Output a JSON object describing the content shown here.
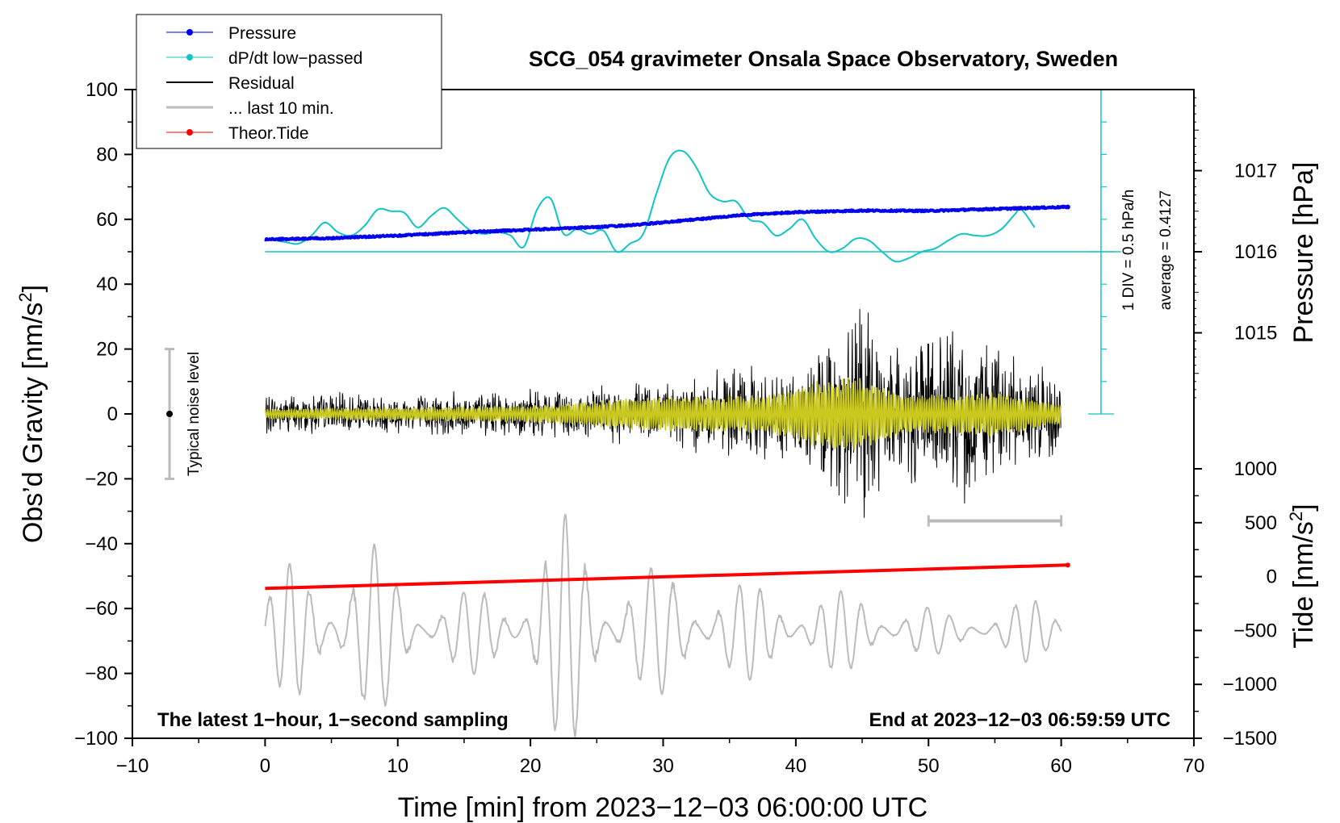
{
  "chart_data": {
    "type": "line",
    "title": "SCG_054 gravimeter Onsala Space Observatory, Sweden",
    "xlabel": "Time [min] from 2023−12−03 06:00:00 UTC",
    "ylabel": "Obs’d Gravity [nm/s²]",
    "ylabel_main": "Obs’d Gravity [nm/s",
    "ylabel_sup": "2",
    "ylabel_end": "]",
    "y2label_pressure": "Pressure [hPa]",
    "y2label_tide_main": "Tide [nm/s",
    "y2label_tide_sup": "2",
    "y2label_tide_end": "]",
    "xlim": [
      -10,
      70
    ],
    "ylim": [
      -100,
      100
    ],
    "xticks": [
      -10,
      0,
      10,
      20,
      30,
      40,
      50,
      60,
      70
    ],
    "xtick_labels": [
      "−10",
      "0",
      "10",
      "20",
      "30",
      "40",
      "50",
      "60",
      "70"
    ],
    "yticks": [
      100,
      80,
      60,
      40,
      20,
      0,
      -20,
      -40,
      -60,
      -80,
      -100
    ],
    "ytick_labels": [
      "100",
      "80",
      "60",
      "40",
      "20",
      "0",
      "−20",
      "−40",
      "−60",
      "−80",
      "−100"
    ],
    "pressure_axis": {
      "ticks": [
        1017,
        1016,
        1015
      ],
      "tick_labels": [
        "1017",
        "1016",
        "1015"
      ],
      "gravity_equiv_at_1016": 50,
      "gravity_per_hpa": 25
    },
    "tide_axis": {
      "ticks": [
        1000,
        500,
        0,
        -500,
        -1000,
        -1500
      ],
      "tick_labels": [
        "1000",
        "500",
        "0",
        "−500",
        "−1000",
        "−1500"
      ],
      "range": [
        -1500,
        1000
      ]
    },
    "legend": [
      {
        "label": "Pressure",
        "color": "#0000ee",
        "marker": true
      },
      {
        "label": "dP/dt low−passed",
        "color": "#11c4c4",
        "marker": true
      },
      {
        "label": "Residual",
        "color": "#000000",
        "marker": false
      },
      {
        "label": "... last 10 min.",
        "color": "#bbbbbb",
        "marker": false
      },
      {
        "label": "Theor.Tide",
        "color": "#ff0000",
        "marker": true
      }
    ],
    "annotations": {
      "bottom_left": "The latest 1−hour, 1−second sampling",
      "bottom_right": "End at 2023−12−03 06:59:59 UTC",
      "scale_div": "1 DIV = 0.5 hPa/h",
      "scale_avg": "average = 0.4127",
      "noise_label": "Typical noise level"
    },
    "noise_bar": {
      "x": -7.2,
      "center": 0,
      "low": -20,
      "high": 20
    },
    "last10_bar": {
      "x_start": 50,
      "x_end": 60,
      "y": -33
    },
    "dpdt_baseline_y": 50,
    "dpdt_scale_bar": {
      "x": 63,
      "y_bottom": 0,
      "y_top": 100
    },
    "series": [
      {
        "name": "Pressure",
        "color": "#0000ee",
        "x": [
          0,
          5,
          10,
          15,
          20,
          25,
          28,
          32,
          36,
          40,
          45,
          50,
          55,
          60.5
        ],
        "y": [
          53.8,
          54.2,
          55,
          56,
          56.8,
          57.6,
          58.3,
          59.8,
          61.3,
          62.2,
          62.7,
          62.6,
          63.2,
          63.8
        ]
      },
      {
        "name": "dP/dt low−passed",
        "color": "#11c4c4",
        "x": [
          0,
          1.5,
          2.5,
          3.5,
          4.5,
          5.5,
          6.5,
          7.5,
          8.5,
          9.5,
          10.5,
          11.5,
          12.5,
          13.5,
          14.5,
          15.5,
          16.5,
          17.5,
          18.5,
          19.5,
          20.5,
          21.5,
          22.5,
          23.5,
          24.5,
          25.5,
          26.5,
          27.5,
          28.5,
          29.5,
          30.5,
          31.5,
          32.5,
          33.5,
          34.5,
          35.5,
          36.5,
          37.5,
          38.5,
          39.5,
          40.5,
          41.5,
          42.5,
          43.5,
          44.5,
          45.5,
          46.5,
          47.5,
          48.5,
          49.5,
          50.5,
          51.5,
          52.5,
          53.5,
          54.5,
          55.5,
          56.5,
          57,
          58
        ],
        "y": [
          54,
          53,
          52.5,
          55,
          59,
          56,
          55,
          58,
          63,
          62.5,
          62,
          57.5,
          61,
          63.5,
          60,
          56.5,
          55.5,
          56,
          55,
          51.5,
          63,
          66.5,
          55.5,
          57,
          55.5,
          56.5,
          50,
          52.5,
          55.5,
          68,
          79,
          81,
          76,
          68,
          65.5,
          65.5,
          60,
          59,
          55,
          57,
          60,
          54,
          50,
          51,
          54,
          53.5,
          50,
          47,
          48,
          50,
          51,
          53.5,
          55.5,
          55,
          55,
          57,
          61.5,
          63,
          57.5
        ]
      },
      {
        "name": "Theor.Tide",
        "color": "#ff0000",
        "x": [
          0,
          60.5
        ],
        "y": [
          -53.8,
          -46.6
        ]
      }
    ],
    "residual": {
      "color": "#000000",
      "x_range": [
        0,
        60
      ],
      "envelope": [
        {
          "x": 0,
          "amp": 7
        },
        {
          "x": 10,
          "amp": 7
        },
        {
          "x": 20,
          "amp": 8
        },
        {
          "x": 27,
          "amp": 10
        },
        {
          "x": 35,
          "amp": 15
        },
        {
          "x": 40,
          "amp": 16
        },
        {
          "x": 43,
          "amp": 28
        },
        {
          "x": 45,
          "amp": 38
        },
        {
          "x": 48,
          "amp": 24
        },
        {
          "x": 51,
          "amp": 28
        },
        {
          "x": 54,
          "amp": 30
        },
        {
          "x": 57,
          "amp": 18
        },
        {
          "x": 60,
          "amp": 14
        }
      ]
    },
    "filtered_residual": {
      "color": "#c8c81e",
      "x_range": [
        0,
        60
      ],
      "envelope": [
        {
          "x": 0,
          "amp": 1.5
        },
        {
          "x": 20,
          "amp": 2.5
        },
        {
          "x": 28,
          "amp": 5
        },
        {
          "x": 38,
          "amp": 6
        },
        {
          "x": 43,
          "amp": 12
        },
        {
          "x": 45,
          "amp": 11
        },
        {
          "x": 48,
          "amp": 6
        },
        {
          "x": 52,
          "amp": 6
        },
        {
          "x": 55,
          "amp": 7
        },
        {
          "x": 60,
          "amp": 3
        }
      ]
    },
    "last10": {
      "name": "... last 10 min.",
      "color": "#bbbbbb",
      "x_range": [
        0,
        60
      ],
      "center": -67,
      "envelope": [
        {
          "x": 0,
          "amp": 12
        },
        {
          "x": 2,
          "amp": 22
        },
        {
          "x": 8,
          "amp": 28
        },
        {
          "x": 12,
          "amp": 12
        },
        {
          "x": 18,
          "amp": 14
        },
        {
          "x": 23,
          "amp": 38
        },
        {
          "x": 26,
          "amp": 20
        },
        {
          "x": 30,
          "amp": 20
        },
        {
          "x": 38,
          "amp": 14
        },
        {
          "x": 45,
          "amp": 12
        },
        {
          "x": 52,
          "amp": 6
        },
        {
          "x": 58,
          "amp": 10
        },
        {
          "x": 60,
          "amp": 8
        }
      ]
    }
  }
}
